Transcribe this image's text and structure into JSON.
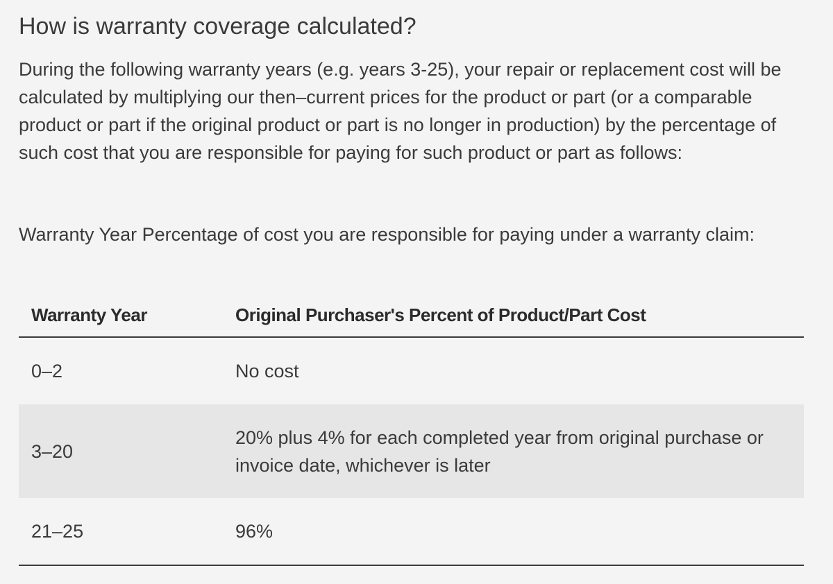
{
  "heading": "How is warranty coverage calculated?",
  "intro": "During the following warranty years (e.g. years 3-25), your repair or replacement cost will be calculated by multiplying our then–current prices for the product or part (or a comparable product or part if the original product or part is no longer in production) by the percentage of such cost that you are responsible for paying for such product or part as follows:",
  "table_intro": "Warranty Year Percentage of cost you are responsible for paying under a warranty claim:",
  "table": {
    "headers": [
      "Warranty Year",
      "Original Purchaser's Percent of Product/Part Cost"
    ],
    "rows": [
      [
        "0–2",
        "No cost"
      ],
      [
        "3–20",
        "20% plus 4% for each completed year from original purchase or invoice date, whichever is later"
      ],
      [
        "21–25",
        "96%"
      ]
    ]
  }
}
